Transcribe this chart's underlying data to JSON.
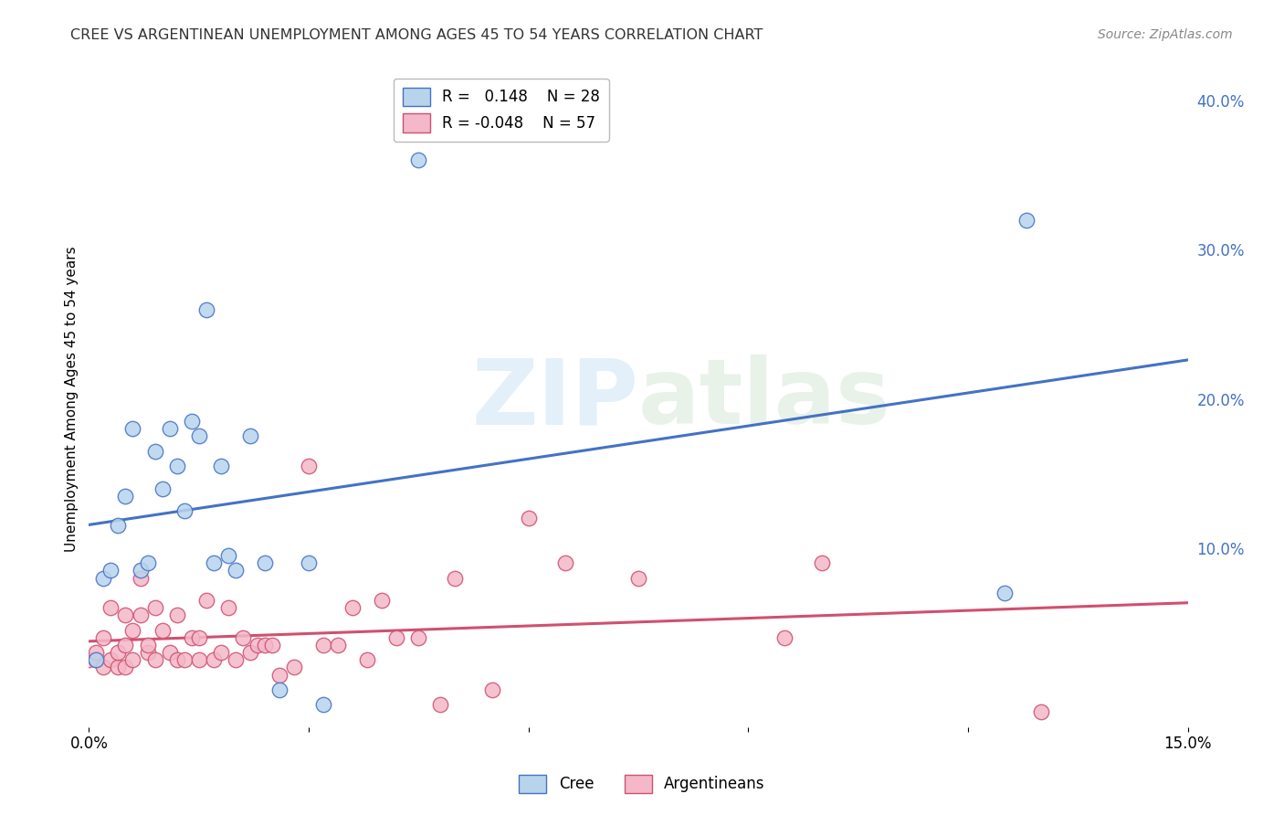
{
  "title": "CREE VS ARGENTINEAN UNEMPLOYMENT AMONG AGES 45 TO 54 YEARS CORRELATION CHART",
  "source": "Source: ZipAtlas.com",
  "ylabel": "Unemployment Among Ages 45 to 54 years",
  "xlim": [
    0.0,
    0.15
  ],
  "ylim": [
    -0.02,
    0.42
  ],
  "xticks": [
    0.0,
    0.03,
    0.06,
    0.09,
    0.12,
    0.15
  ],
  "xtick_labels": [
    "0.0%",
    "",
    "",
    "",
    "",
    "15.0%"
  ],
  "yticks_right": [
    0.0,
    0.1,
    0.2,
    0.3,
    0.4
  ],
  "ytick_labels_right": [
    "",
    "10.0%",
    "20.0%",
    "30.0%",
    "40.0%"
  ],
  "cree_R": 0.148,
  "cree_N": 28,
  "arg_R": -0.048,
  "arg_N": 57,
  "cree_color": "#b8d4ed",
  "cree_line_color": "#4472c4",
  "arg_color": "#f4b8c8",
  "arg_line_color": "#d05070",
  "cree_x": [
    0.001,
    0.002,
    0.003,
    0.004,
    0.005,
    0.006,
    0.007,
    0.008,
    0.009,
    0.01,
    0.011,
    0.012,
    0.013,
    0.014,
    0.015,
    0.016,
    0.017,
    0.018,
    0.019,
    0.02,
    0.022,
    0.024,
    0.026,
    0.03,
    0.032,
    0.045,
    0.125,
    0.128
  ],
  "cree_y": [
    0.025,
    0.08,
    0.085,
    0.115,
    0.135,
    0.18,
    0.085,
    0.09,
    0.165,
    0.14,
    0.18,
    0.155,
    0.125,
    0.185,
    0.175,
    0.26,
    0.09,
    0.155,
    0.095,
    0.085,
    0.175,
    0.09,
    0.005,
    0.09,
    -0.005,
    0.36,
    0.07,
    0.32
  ],
  "arg_x": [
    0.0,
    0.001,
    0.001,
    0.002,
    0.002,
    0.003,
    0.003,
    0.004,
    0.004,
    0.005,
    0.005,
    0.005,
    0.006,
    0.006,
    0.007,
    0.007,
    0.008,
    0.008,
    0.009,
    0.009,
    0.01,
    0.011,
    0.012,
    0.012,
    0.013,
    0.014,
    0.015,
    0.015,
    0.016,
    0.017,
    0.018,
    0.019,
    0.02,
    0.021,
    0.022,
    0.023,
    0.024,
    0.025,
    0.026,
    0.028,
    0.03,
    0.032,
    0.034,
    0.036,
    0.038,
    0.04,
    0.042,
    0.045,
    0.048,
    0.05,
    0.055,
    0.06,
    0.065,
    0.075,
    0.095,
    0.1,
    0.13
  ],
  "arg_y": [
    0.025,
    0.025,
    0.03,
    0.02,
    0.04,
    0.025,
    0.06,
    0.02,
    0.03,
    0.02,
    0.055,
    0.035,
    0.045,
    0.025,
    0.08,
    0.055,
    0.03,
    0.035,
    0.06,
    0.025,
    0.045,
    0.03,
    0.025,
    0.055,
    0.025,
    0.04,
    0.025,
    0.04,
    0.065,
    0.025,
    0.03,
    0.06,
    0.025,
    0.04,
    0.03,
    0.035,
    0.035,
    0.035,
    0.015,
    0.02,
    0.155,
    0.035,
    0.035,
    0.06,
    0.025,
    0.065,
    0.04,
    0.04,
    -0.005,
    0.08,
    0.005,
    0.12,
    0.09,
    0.08,
    0.04,
    0.09,
    -0.01
  ]
}
